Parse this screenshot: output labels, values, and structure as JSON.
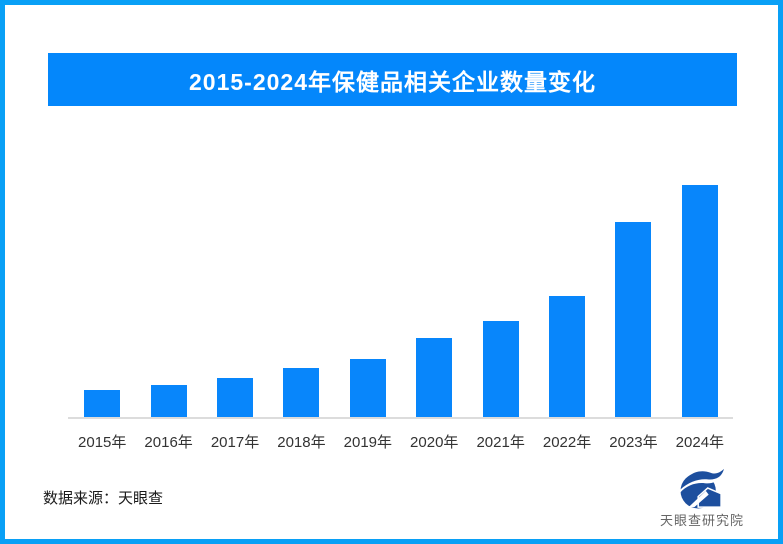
{
  "frame": {
    "border_color": "#09a0f6",
    "background_color": "#ffffff"
  },
  "banner": {
    "title": "2015-2024年保健品相关企业数量变化",
    "bg_color": "#0487fb",
    "text_color": "#ffffff"
  },
  "chart_data": {
    "type": "bar",
    "title": "2015-2024年保健品相关企业数量变化",
    "categories": [
      "2015年",
      "2016年",
      "2017年",
      "2018年",
      "2019年",
      "2020年",
      "2021年",
      "2022年",
      "2023年",
      "2024年"
    ],
    "values": [
      11.6,
      13.8,
      17.0,
      21.1,
      25.0,
      34.1,
      41.4,
      52.2,
      84.1,
      100.0
    ],
    "values_note": "chart shows no numeric axis or data labels; values are bar heights estimated from pixels, normalized to 2024 = 100",
    "xlabel": "",
    "ylabel": "",
    "ylim": [
      0,
      100
    ],
    "grid": false,
    "legend": false,
    "bar_color": "#0886fb",
    "axis_line_color": "#dcdcdc",
    "tick_label_color": "#333333"
  },
  "footer": {
    "source_text": "数据来源：天眼查"
  },
  "logo": {
    "name": "天眼查研究院",
    "mark_color": "#1d4f9e",
    "text_color": "#666666"
  }
}
